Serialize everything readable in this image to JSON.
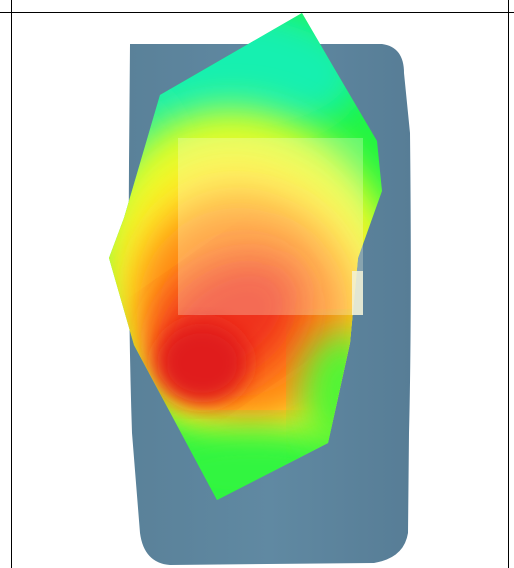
{
  "figure": {
    "description_colors": {
      "body": "#5f869f",
      "highlight_box": "#ffffe0",
      "hot": "#e31a1c",
      "warm": "#ff9c1a",
      "mid": "#f4ff2a",
      "cool": "#2aff3a",
      "cold": "#19f7a8"
    }
  }
}
